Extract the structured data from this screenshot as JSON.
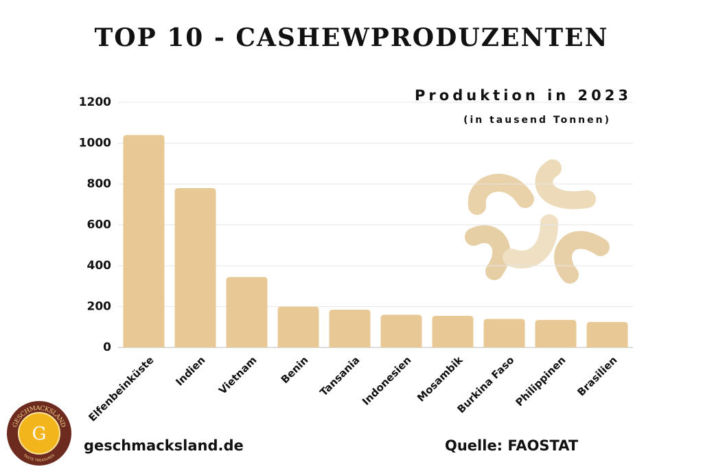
{
  "chart_data": {
    "type": "bar",
    "title": "TOP 10 - CASHEWPRODUZENTEN",
    "subtitle": "Produktion in 2023",
    "unit_note": "(in tausend Tonnen)",
    "categories": [
      "Elfenbeinküste",
      "Indien",
      "Vietnam",
      "Benin",
      "Tansania",
      "Indonesien",
      "Mosambik",
      "Burkina Faso",
      "Philippinen",
      "Brasilien"
    ],
    "values": [
      1040,
      780,
      345,
      200,
      185,
      160,
      155,
      140,
      135,
      125
    ],
    "color": "#e8c995",
    "ylim": [
      0,
      1200
    ],
    "yticks": [
      0,
      200,
      400,
      600,
      800,
      1000,
      1200
    ],
    "grid": true
  },
  "footer": {
    "website": "geschmacksland.de",
    "source": "Quelle: FAOSTAT"
  },
  "logo": {
    "name": "GESCHMACKSLAND",
    "letter": "G",
    "tagline": "TASTE TREASURES"
  }
}
